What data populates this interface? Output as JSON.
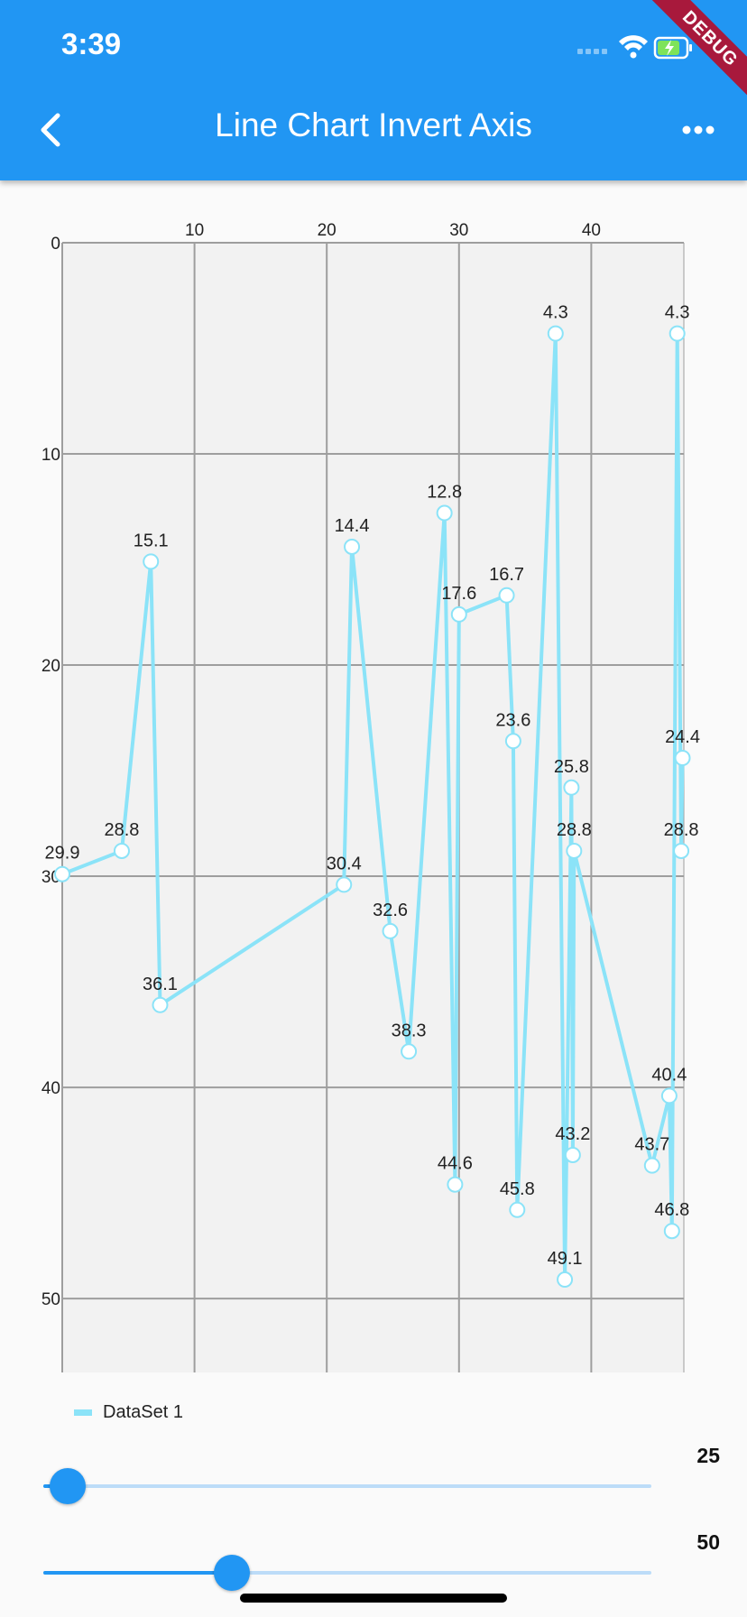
{
  "status_bar": {
    "time": "3:39"
  },
  "app_bar": {
    "title": "Line Chart Invert Axis",
    "background": "#2196f3"
  },
  "debug_banner": "DEBUG",
  "chart_data": {
    "type": "line",
    "x_axis_position": "top",
    "y_axis_inverted": true,
    "xlim": [
      0,
      47
    ],
    "ylim": [
      0,
      53.5
    ],
    "x_ticks": [
      10,
      20,
      30,
      40
    ],
    "y_ticks": [
      0,
      10,
      20,
      30,
      40,
      50
    ],
    "grid": true,
    "legend": "bottom-left",
    "line_color": "#8be3f8",
    "series": [
      {
        "name": "DataSet 1",
        "x": [
          0,
          4.5,
          6.7,
          7.4,
          21.3,
          21.9,
          24.8,
          26.2,
          28.9,
          29.7,
          30.0,
          33.6,
          34.1,
          34.4,
          37.3,
          38.0,
          38.5,
          38.6,
          38.7,
          44.6,
          45.9,
          46.1,
          46.5,
          46.8,
          46.9
        ],
        "y": [
          29.9,
          28.8,
          15.1,
          36.1,
          30.4,
          14.4,
          32.6,
          38.3,
          12.8,
          44.6,
          17.6,
          16.7,
          23.6,
          45.8,
          4.3,
          49.1,
          25.8,
          43.2,
          28.8,
          43.7,
          40.4,
          46.8,
          4.3,
          28.8,
          24.4
        ]
      }
    ]
  },
  "sliders": [
    {
      "value": 25,
      "label": "25",
      "fraction": 0.04
    },
    {
      "value": 50,
      "label": "50",
      "fraction": 0.31
    }
  ]
}
